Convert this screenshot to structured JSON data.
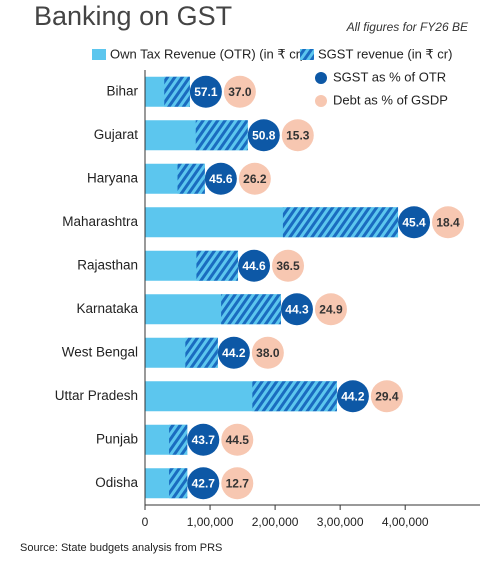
{
  "chart_data": {
    "type": "bar",
    "orientation": "horizontal",
    "title": "Banking on GST",
    "note": "All figures for FY26 BE",
    "source": "Source: State budgets analysis from PRS",
    "categories": [
      "Bihar",
      "Gujarat",
      "Haryana",
      "Maharashtra",
      "Rajasthan",
      "Karnataka",
      "West Bengal",
      "Uttar Pradesh",
      "Punjab",
      "Odisha"
    ],
    "series": [
      {
        "name": "Own Tax Revenue (OTR) (in ₹ cr)",
        "color": "#5cc6ee",
        "values": [
          69000,
          158000,
          92000,
          389000,
          143000,
          209000,
          112000,
          295000,
          65000,
          65000
        ]
      },
      {
        "name": "SGST revenue (in ₹ cr)",
        "color": "#1a6cc0",
        "hatched": true,
        "values": [
          39400,
          80000,
          42000,
          177000,
          64000,
          92000,
          50000,
          130000,
          28000,
          28000
        ]
      },
      {
        "name": "SGST as % of OTR",
        "color": "#0d58a6",
        "marker": "circle",
        "values": [
          57.1,
          50.8,
          45.6,
          45.4,
          44.6,
          44.3,
          44.2,
          44.2,
          43.7,
          42.7
        ]
      },
      {
        "name": "Debt as % of GSDP",
        "color": "#f7c7b1",
        "marker": "circle",
        "values": [
          37.0,
          15.3,
          26.2,
          18.4,
          36.5,
          24.9,
          38.0,
          29.4,
          44.5,
          12.7
        ],
        "value_labels": [
          "37.0",
          "15.3",
          "26.2",
          "18.4",
          "36.5",
          "24.9",
          "38.0",
          "29.4",
          "44.5",
          "12.7"
        ]
      }
    ],
    "xlim": [
      0,
      515000
    ],
    "xticks": [
      0,
      {
        "value": 100000,
        "label": "1,00,000"
      },
      {
        "value": 200000,
        "label": "2,00,000"
      },
      {
        "value": 300000,
        "label": "3,00,000"
      },
      {
        "value": 400000,
        "label": "4,00,000"
      }
    ]
  }
}
